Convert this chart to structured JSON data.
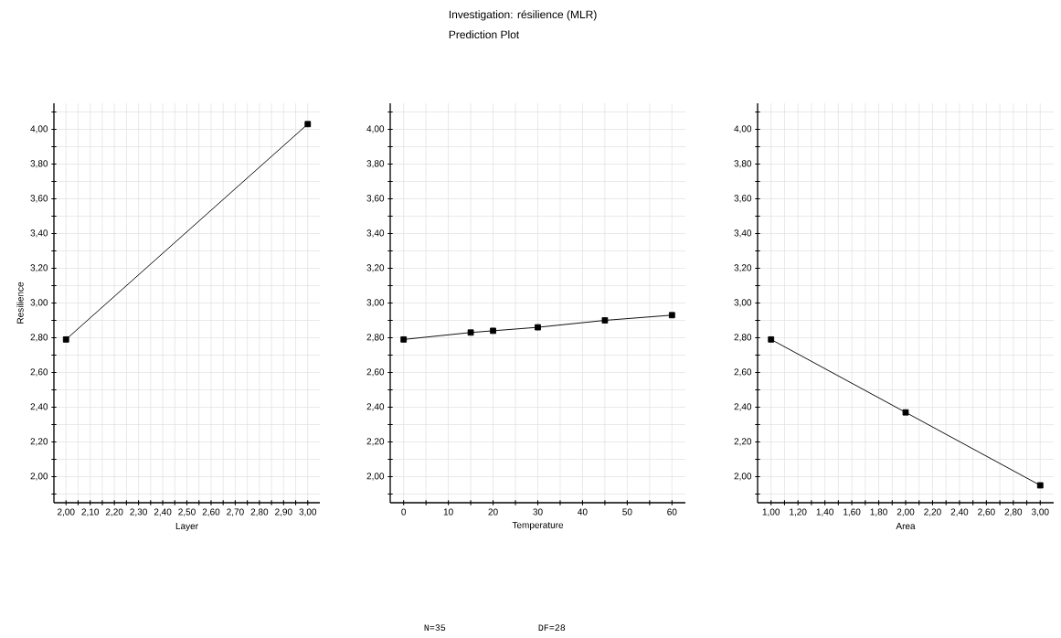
{
  "chart_data": [
    {
      "type": "line",
      "xlabel": "Layer",
      "ylabel": "Resilience",
      "grid": true,
      "marker": "square",
      "line_style": "solid",
      "x": [
        2,
        3
      ],
      "series": [
        {
          "color": "#000000",
          "values": [
            2.79,
            4.03
          ]
        }
      ],
      "xlim": [
        1.95,
        3.05
      ],
      "ylim": [
        1.85,
        4.15
      ],
      "xticks": [
        {
          "value": 2,
          "label": "2,00"
        },
        {
          "value": 2.05,
          "label": null
        },
        {
          "value": 2.1,
          "label": "2,10"
        },
        {
          "value": 2.15,
          "label": null
        },
        {
          "value": 2.2,
          "label": "2,20"
        },
        {
          "value": 2.25,
          "label": null
        },
        {
          "value": 2.3,
          "label": "2,30"
        },
        {
          "value": 2.35,
          "label": null
        },
        {
          "value": 2.4,
          "label": "2,40"
        },
        {
          "value": 2.45,
          "label": null
        },
        {
          "value": 2.5,
          "label": "2,50"
        },
        {
          "value": 2.55,
          "label": null
        },
        {
          "value": 2.6,
          "label": "2,60"
        },
        {
          "value": 2.65,
          "label": null
        },
        {
          "value": 2.7,
          "label": "2,70"
        },
        {
          "value": 2.75,
          "label": null
        },
        {
          "value": 2.8,
          "label": "2,80"
        },
        {
          "value": 2.85,
          "label": null
        },
        {
          "value": 2.9,
          "label": "2,90"
        },
        {
          "value": 2.95,
          "label": null
        },
        {
          "value": 3,
          "label": "3,00"
        }
      ],
      "yticks": [
        {
          "value": 1.9,
          "label": null
        },
        {
          "value": 2,
          "label": "2,00"
        },
        {
          "value": 2.1,
          "label": null
        },
        {
          "value": 2.2,
          "label": "2,20"
        },
        {
          "value": 2.3,
          "label": null
        },
        {
          "value": 2.4,
          "label": "2,40"
        },
        {
          "value": 2.5,
          "label": null
        },
        {
          "value": 2.6,
          "label": "2,60"
        },
        {
          "value": 2.7,
          "label": null
        },
        {
          "value": 2.8,
          "label": "2,80"
        },
        {
          "value": 2.9,
          "label": null
        },
        {
          "value": 3,
          "label": "3,00"
        },
        {
          "value": 3.1,
          "label": null
        },
        {
          "value": 3.2,
          "label": "3,20"
        },
        {
          "value": 3.3,
          "label": null
        },
        {
          "value": 3.4,
          "label": "3,40"
        },
        {
          "value": 3.5,
          "label": null
        },
        {
          "value": 3.6,
          "label": "3,60"
        },
        {
          "value": 3.7,
          "label": null
        },
        {
          "value": 3.8,
          "label": "3,80"
        },
        {
          "value": 3.9,
          "label": null
        },
        {
          "value": 4,
          "label": "4,00"
        },
        {
          "value": 4.1,
          "label": null
        }
      ]
    },
    {
      "type": "line",
      "title": "Investigation: résilience (MLR)",
      "subtitle": "Prediction Plot",
      "annotations": [
        "N=35",
        "DF=28"
      ],
      "xlabel": "Temperature",
      "grid": true,
      "marker": "square",
      "line_style": "solid",
      "x": [
        0,
        15,
        20,
        30,
        45,
        60
      ],
      "series": [
        {
          "color": "#000000",
          "values": [
            2.79,
            2.83,
            2.84,
            2.86,
            2.9,
            2.93
          ]
        }
      ],
      "xlim": [
        -3,
        63
      ],
      "ylim": [
        1.85,
        4.15
      ],
      "xticks": [
        0,
        {
          "value": 5,
          "label": null
        },
        10,
        {
          "value": 15,
          "label": null
        },
        20,
        {
          "value": 25,
          "label": null
        },
        30,
        {
          "value": 35,
          "label": null
        },
        40,
        {
          "value": 45,
          "label": null
        },
        50,
        {
          "value": 55,
          "label": null
        },
        60
      ],
      "yticks": [
        {
          "value": 1.9,
          "label": null
        },
        {
          "value": 2,
          "label": "2,00"
        },
        {
          "value": 2.1,
          "label": null
        },
        {
          "value": 2.2,
          "label": "2,20"
        },
        {
          "value": 2.3,
          "label": null
        },
        {
          "value": 2.4,
          "label": "2,40"
        },
        {
          "value": 2.5,
          "label": null
        },
        {
          "value": 2.6,
          "label": "2,60"
        },
        {
          "value": 2.7,
          "label": null
        },
        {
          "value": 2.8,
          "label": "2,80"
        },
        {
          "value": 2.9,
          "label": null
        },
        {
          "value": 3,
          "label": "3,00"
        },
        {
          "value": 3.1,
          "label": null
        },
        {
          "value": 3.2,
          "label": "3,20"
        },
        {
          "value": 3.3,
          "label": null
        },
        {
          "value": 3.4,
          "label": "3,40"
        },
        {
          "value": 3.5,
          "label": null
        },
        {
          "value": 3.6,
          "label": "3,60"
        },
        {
          "value": 3.7,
          "label": null
        },
        {
          "value": 3.8,
          "label": "3,80"
        },
        {
          "value": 3.9,
          "label": null
        },
        {
          "value": 4,
          "label": "4,00"
        },
        {
          "value": 4.1,
          "label": null
        }
      ]
    },
    {
      "type": "line",
      "xlabel": "Area",
      "grid": true,
      "marker": "square",
      "line_style": "solid",
      "x": [
        1,
        2,
        3
      ],
      "series": [
        {
          "color": "#000000",
          "values": [
            2.79,
            2.37,
            1.95
          ]
        }
      ],
      "xlim": [
        0.9,
        3.1
      ],
      "ylim": [
        1.85,
        4.15
      ],
      "xticks": [
        {
          "value": 1,
          "label": "1,00"
        },
        {
          "value": 1.1,
          "label": null
        },
        {
          "value": 1.2,
          "label": "1,20"
        },
        {
          "value": 1.3,
          "label": null
        },
        {
          "value": 1.4,
          "label": "1,40"
        },
        {
          "value": 1.5,
          "label": null
        },
        {
          "value": 1.6,
          "label": "1,60"
        },
        {
          "value": 1.7,
          "label": null
        },
        {
          "value": 1.8,
          "label": "1,80"
        },
        {
          "value": 1.9,
          "label": null
        },
        {
          "value": 2,
          "label": "2,00"
        },
        {
          "value": 2.1,
          "label": null
        },
        {
          "value": 2.2,
          "label": "2,20"
        },
        {
          "value": 2.3,
          "label": null
        },
        {
          "value": 2.4,
          "label": "2,40"
        },
        {
          "value": 2.5,
          "label": null
        },
        {
          "value": 2.6,
          "label": "2,60"
        },
        {
          "value": 2.7,
          "label": null
        },
        {
          "value": 2.8,
          "label": "2,80"
        },
        {
          "value": 2.9,
          "label": null
        },
        {
          "value": 3,
          "label": "3,00"
        }
      ],
      "yticks": [
        {
          "value": 1.9,
          "label": null
        },
        {
          "value": 2,
          "label": "2,00"
        },
        {
          "value": 2.1,
          "label": null
        },
        {
          "value": 2.2,
          "label": "2,20"
        },
        {
          "value": 2.3,
          "label": null
        },
        {
          "value": 2.4,
          "label": "2,40"
        },
        {
          "value": 2.5,
          "label": null
        },
        {
          "value": 2.6,
          "label": "2,60"
        },
        {
          "value": 2.7,
          "label": null
        },
        {
          "value": 2.8,
          "label": "2,80"
        },
        {
          "value": 2.9,
          "label": null
        },
        {
          "value": 3,
          "label": "3,00"
        },
        {
          "value": 3.1,
          "label": null
        },
        {
          "value": 3.2,
          "label": "3,20"
        },
        {
          "value": 3.3,
          "label": null
        },
        {
          "value": 3.4,
          "label": "3,40"
        },
        {
          "value": 3.5,
          "label": null
        },
        {
          "value": 3.6,
          "label": "3,60"
        },
        {
          "value": 3.7,
          "label": null
        },
        {
          "value": 3.8,
          "label": "3,80"
        },
        {
          "value": 3.9,
          "label": null
        },
        {
          "value": 4,
          "label": "4,00"
        },
        {
          "value": 4.1,
          "label": null
        }
      ]
    }
  ]
}
